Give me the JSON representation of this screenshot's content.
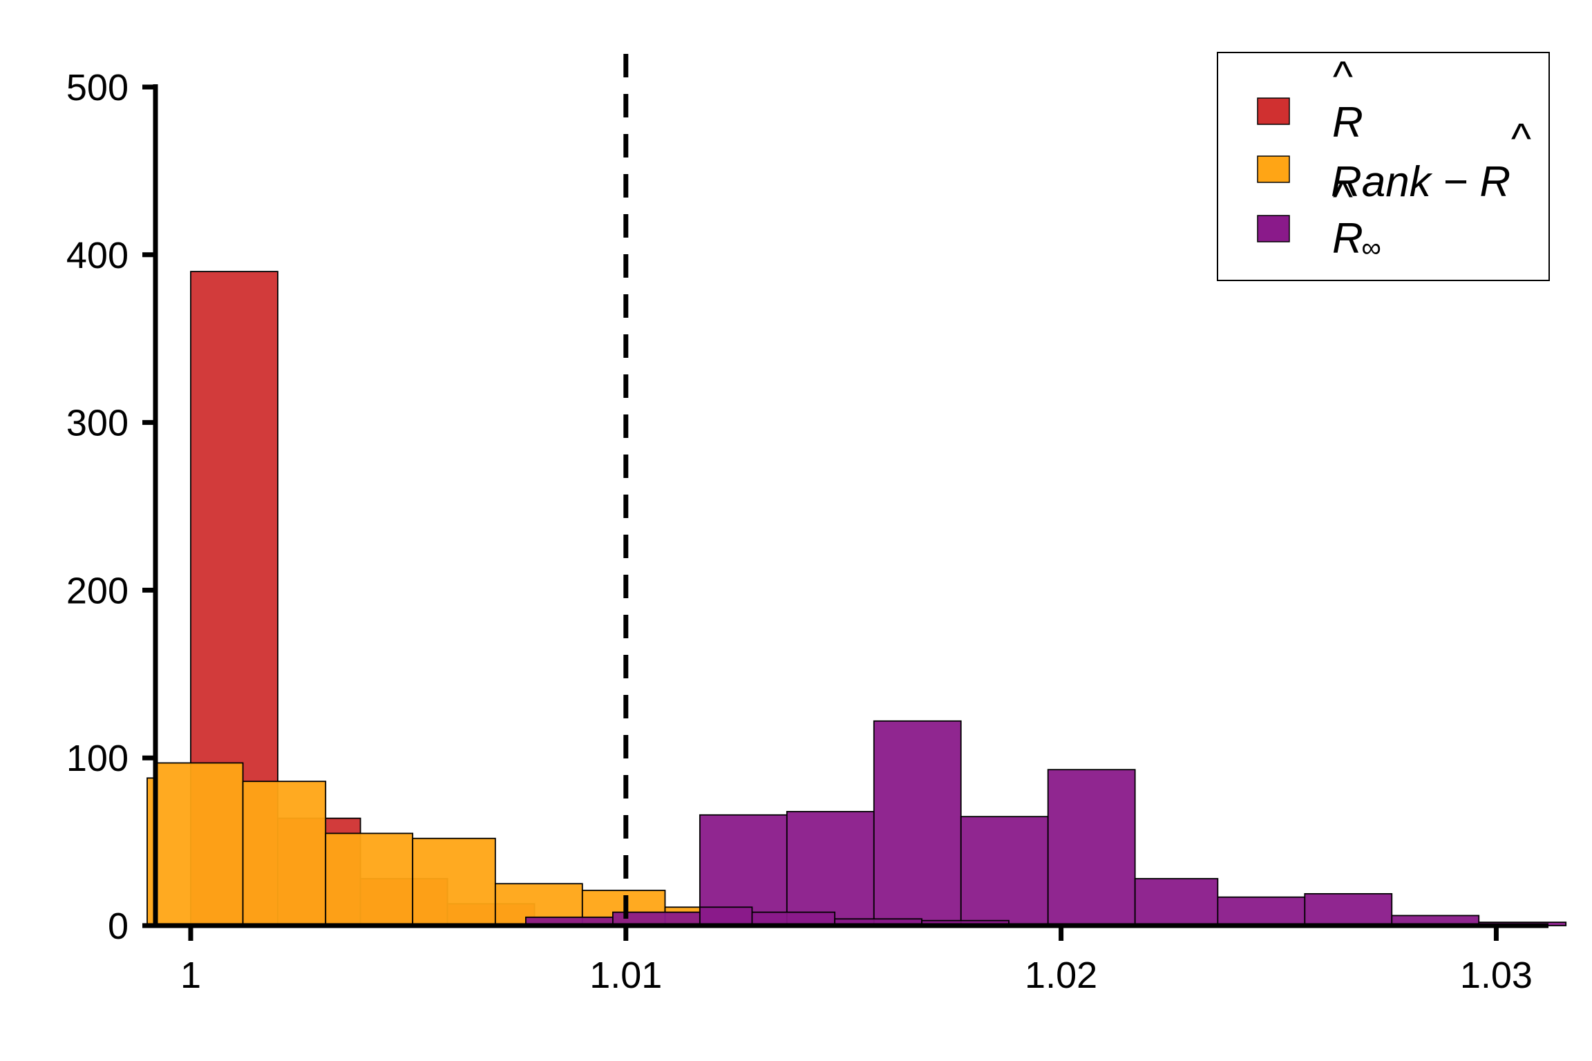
{
  "chart_data": {
    "type": "bar",
    "subtype": "overlaid-histogram",
    "title": "",
    "xlabel": "",
    "ylabel": "",
    "xlim": [
      0.999,
      1.0312
    ],
    "ylim": [
      0,
      500
    ],
    "x_ticks": [
      1,
      1.01,
      1.02,
      1.03
    ],
    "x_tick_labels": [
      "1",
      "1.01",
      "1.02",
      "1.03"
    ],
    "y_ticks": [
      0,
      100,
      200,
      300,
      400,
      500
    ],
    "y_tick_labels": [
      "0",
      "100",
      "200",
      "300",
      "400",
      "500"
    ],
    "reference_line": {
      "x": 1.01,
      "style": "dashed",
      "color": "#000000"
    },
    "grid": false,
    "legend_position": "top-right",
    "series": [
      {
        "name": "R̂",
        "color": "#d03030",
        "bins": [
          {
            "x0": 1.0,
            "x1": 1.002,
            "count": 390
          },
          {
            "x0": 1.002,
            "x1": 1.0039,
            "count": 64
          },
          {
            "x0": 1.0039,
            "x1": 1.0059,
            "count": 28
          },
          {
            "x0": 1.0059,
            "x1": 1.0079,
            "count": 13
          },
          {
            "x0": 1.0079,
            "x1": 1.0099,
            "count": 5
          }
        ]
      },
      {
        "name": "Rank − R̂",
        "color": "#ffa515",
        "bins": [
          {
            "x0": 0.999,
            "x1": 0.9992,
            "count": 88
          },
          {
            "x0": 0.9992,
            "x1": 1.0012,
            "count": 97
          },
          {
            "x0": 1.0012,
            "x1": 1.0031,
            "count": 86
          },
          {
            "x0": 1.0031,
            "x1": 1.0051,
            "count": 55
          },
          {
            "x0": 1.0051,
            "x1": 1.007,
            "count": 52
          },
          {
            "x0": 1.007,
            "x1": 1.009,
            "count": 25
          },
          {
            "x0": 1.009,
            "x1": 1.0109,
            "count": 21
          },
          {
            "x0": 1.0109,
            "x1": 1.0117,
            "count": 11
          }
        ]
      },
      {
        "name": "R̂∞",
        "color": "#8a1a8a",
        "bins": [
          {
            "x0": 1.0077,
            "x1": 1.0097,
            "count": 5
          },
          {
            "x0": 1.0097,
            "x1": 1.0117,
            "count": 8
          },
          {
            "x0": 1.0117,
            "x1": 1.0137,
            "count": 66
          },
          {
            "x0": 1.0137,
            "x1": 1.0157,
            "count": 68
          },
          {
            "x0": 1.0157,
            "x1": 1.0177,
            "count": 122
          },
          {
            "x0": 1.0177,
            "x1": 1.0197,
            "count": 65
          },
          {
            "x0": 1.0197,
            "x1": 1.0217,
            "count": 93
          },
          {
            "x0": 1.0217,
            "x1": 1.0236,
            "count": 28
          },
          {
            "x0": 1.0236,
            "x1": 1.0256,
            "count": 17
          },
          {
            "x0": 1.0256,
            "x1": 1.0276,
            "count": 19
          },
          {
            "x0": 1.0276,
            "x1": 1.0296,
            "count": 6
          },
          {
            "x0": 1.0296,
            "x1": 1.0316,
            "count": 2
          }
        ]
      },
      {
        "name": "",
        "color": "#8a1a8a",
        "overlay": true,
        "bins": [
          {
            "x0": 1.0117,
            "x1": 1.0129,
            "count": 11
          },
          {
            "x0": 1.0129,
            "x1": 1.0148,
            "count": 8
          },
          {
            "x0": 1.0148,
            "x1": 1.0168,
            "count": 4
          },
          {
            "x0": 1.0168,
            "x1": 1.0188,
            "count": 3
          }
        ]
      }
    ]
  },
  "legend": {
    "items": [
      {
        "label": "R",
        "hat": "^",
        "sub": "",
        "color": "#d03030"
      },
      {
        "label": "Rank − R",
        "hat": "^",
        "sub": "",
        "color": "#ffa515"
      },
      {
        "label": "R",
        "hat": "^",
        "sub": "∞",
        "color": "#8a1a8a"
      }
    ]
  }
}
